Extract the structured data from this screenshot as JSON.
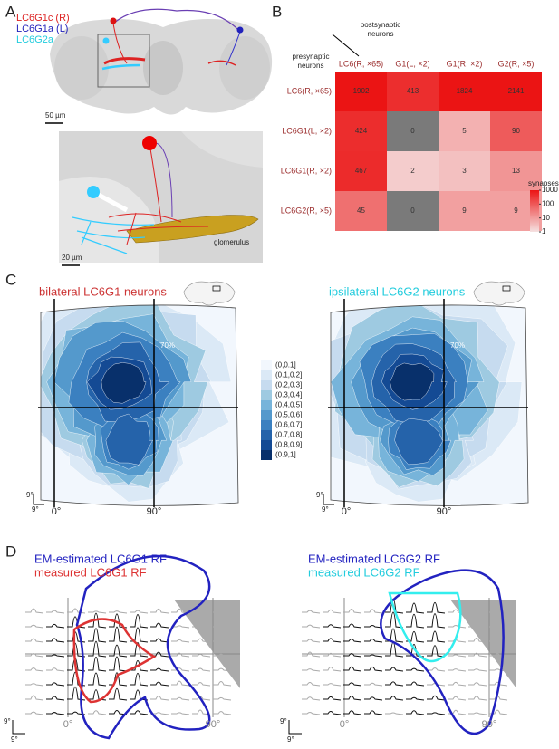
{
  "figure": {
    "A": {
      "label": "A",
      "legend": [
        "LC6G1c (R)",
        "LC6G1a (L)",
        "LC6G2a"
      ],
      "scale_top": "50 µm",
      "scale_bottom": "20 µm",
      "annotation": "glomerulus"
    },
    "B": {
      "label": "B",
      "col_title": [
        "postsynaptic",
        "neurons"
      ],
      "row_title": [
        "presynaptic",
        "neurons"
      ],
      "columns": [
        "LC6(R, ×65)",
        "G1(L, ×2)",
        "G1(R, ×2)",
        "G2(R, ×5)"
      ],
      "rows": [
        "LC6(R, ×65)",
        "LC6G1(L, ×2)",
        "LC6G1(R, ×2)",
        "LC6G2(R, ×5)"
      ],
      "cells": [
        [
          1902,
          413,
          1824,
          2141
        ],
        [
          424,
          0,
          5,
          90
        ],
        [
          467,
          2,
          3,
          13
        ],
        [
          45,
          0,
          9,
          9
        ]
      ],
      "colorbar_title": "synapses",
      "colorbar_ticks": [
        1000,
        100,
        10,
        1
      ]
    },
    "C": {
      "label": "C",
      "maps": [
        {
          "title": "bilateral LC6G1 neurons",
          "annotation": "70%",
          "x_ticks": [
            "0°",
            "90°"
          ],
          "scale": [
            "9°",
            "9°"
          ]
        },
        {
          "title": "ipsilateral LC6G2 neurons",
          "annotation": "70%",
          "x_ticks": [
            "0°",
            "90°"
          ],
          "scale": [
            "9°",
            "9°"
          ]
        }
      ],
      "legend": [
        "(0,0.1]",
        "(0.1,0.2]",
        "(0.2,0.3]",
        "(0.3,0.4]",
        "(0.4,0.5]",
        "(0.5,0.6]",
        "(0.6,0.7]",
        "(0.7,0.8]",
        "(0.8,0.9]",
        "(0.9,1]"
      ]
    },
    "D": {
      "label": "D",
      "panels": [
        {
          "legend": [
            "EM-estimated LC6G1 RF",
            "measured LC6G1 RF"
          ],
          "x_ticks": [
            "0°",
            "90°"
          ],
          "scale": [
            "9°",
            "9°"
          ]
        },
        {
          "legend": [
            "EM-estimated LC6G2 RF",
            "measured LC6G2 RF"
          ],
          "x_ticks": [
            "0°",
            "90°"
          ],
          "scale": [
            "9°",
            "9°"
          ]
        }
      ]
    }
  }
}
